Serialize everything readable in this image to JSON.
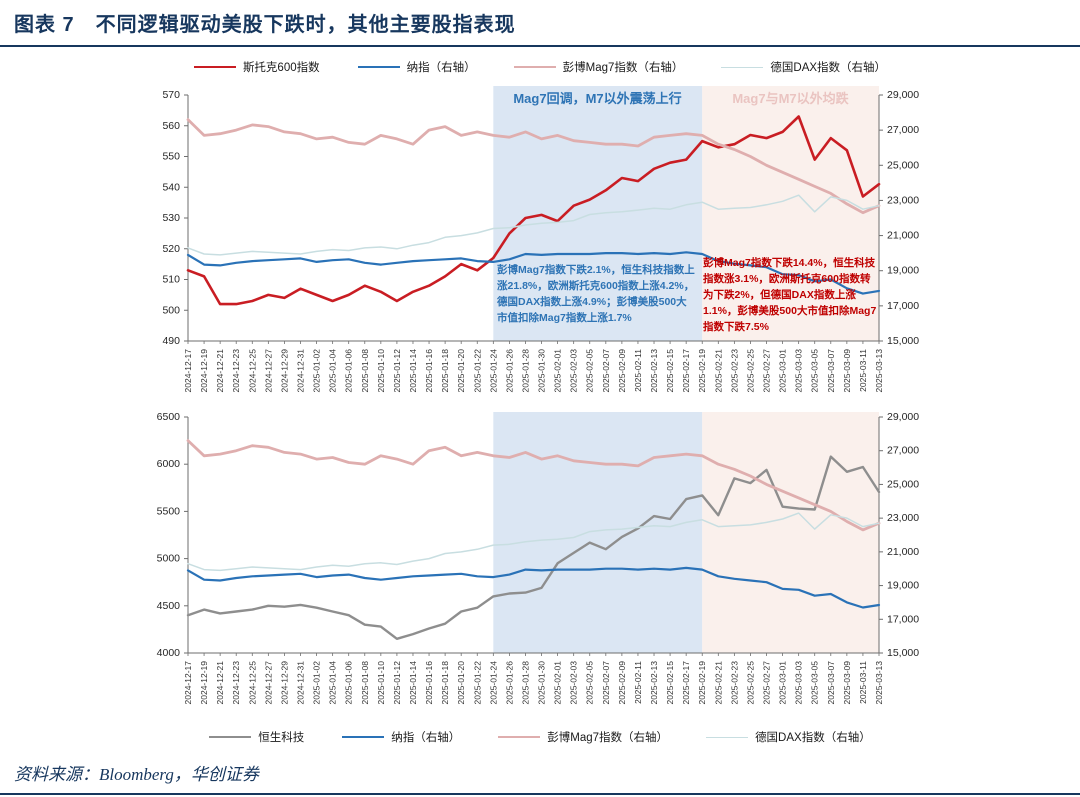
{
  "figure": {
    "title": "图表 7　不同逻辑驱动美股下跌时，其他主要股指表现",
    "source": "资料来源：Bloomberg，华创证券"
  },
  "annotations": {
    "blue_period": "彭博Mag7指数下跌2.1%，恒生科技指数上涨21.8%，欧洲斯托克600指数上涨4.2%，德国DAX指数上涨4.9%；彭博美股500大市值扣除Mag7指数上涨1.7%",
    "red_period": "彭博Mag7指数下跌14.4%，恒生科技指数涨3.1%，欧洲斯托克600指数转为下跌2%，但德国DAX指数上涨1.1%，彭博美股500大市值扣除Mag7指数下跌7.5%"
  },
  "colors": {
    "accent_navy": "#17375e",
    "blue_shade": "#dbe6f3",
    "pink_shade": "#faf0ec",
    "annotation_blue": "#2e74b5",
    "annotation_red": "#bf0000",
    "region_label_pink": "#eac4c1",
    "axis_line": "#6e6e6e"
  },
  "chart_data": [
    {
      "type": "line",
      "legend_position": "top",
      "x": [
        "2024-12-17",
        "2024-12-19",
        "2024-12-21",
        "2024-12-23",
        "2024-12-25",
        "2024-12-27",
        "2024-12-29",
        "2024-12-31",
        "2025-01-02",
        "2025-01-04",
        "2025-01-06",
        "2025-01-08",
        "2025-01-10",
        "2025-01-12",
        "2025-01-14",
        "2025-01-16",
        "2025-01-18",
        "2025-01-20",
        "2025-01-22",
        "2025-01-24",
        "2025-01-26",
        "2025-01-28",
        "2025-01-30",
        "2025-02-01",
        "2025-02-03",
        "2025-02-05",
        "2025-02-07",
        "2025-02-09",
        "2025-02-11",
        "2025-02-13",
        "2025-02-15",
        "2025-02-17",
        "2025-02-19",
        "2025-02-21",
        "2025-02-23",
        "2025-02-25",
        "2025-02-27",
        "2025-03-01",
        "2025-03-03",
        "2025-03-05",
        "2025-03-07",
        "2025-03-09",
        "2025-03-11",
        "2025-03-13"
      ],
      "left_axis": {
        "min": 490,
        "max": 570,
        "step": 10
      },
      "right_axis": {
        "min": 15000,
        "max": 29000,
        "step": 2000
      },
      "regions": [
        {
          "label": "Mag7回调，M7以外震荡上行",
          "from": "2025-01-24",
          "to": "2025-02-19",
          "fill": "#dbe6f3"
        },
        {
          "label": "Mag7与M7以外均跌",
          "from": "2025-02-19",
          "to": "2025-03-13",
          "fill": "#faf0ec"
        }
      ],
      "series": [
        {
          "name": "斯托克600指数",
          "axis": "left",
          "color": "#c91d23",
          "width": 2.6,
          "values": [
            513,
            511,
            502,
            502,
            503,
            505,
            504,
            507,
            505,
            503,
            505,
            508,
            506,
            503,
            506,
            508,
            511,
            515,
            513,
            517,
            525,
            530,
            531,
            529,
            534,
            536,
            539,
            543,
            542,
            546,
            548,
            549,
            555,
            553,
            554,
            557,
            556,
            558,
            563,
            549,
            556,
            552,
            537,
            541
          ]
        },
        {
          "name": "纳指（右轴）",
          "axis": "right",
          "color": "#2a72b7",
          "width": 2.2,
          "values": [
            19900,
            19350,
            19300,
            19450,
            19550,
            19600,
            19650,
            19700,
            19500,
            19600,
            19650,
            19450,
            19350,
            19450,
            19550,
            19600,
            19650,
            19700,
            19550,
            19500,
            19650,
            19950,
            19900,
            19950,
            19950,
            19950,
            20000,
            20000,
            19950,
            20000,
            19950,
            20050,
            19950,
            19550,
            19400,
            19300,
            19200,
            18800,
            18750,
            18400,
            18500,
            18000,
            17700,
            17850
          ]
        },
        {
          "name": "彭博Mag7指数（右轴）",
          "axis": "right",
          "color": "#dfaeae",
          "width": 2.8,
          "values": [
            27600,
            26700,
            26800,
            27000,
            27300,
            27200,
            26900,
            26800,
            26500,
            26600,
            26300,
            26200,
            26700,
            26500,
            26200,
            27000,
            27200,
            26700,
            26900,
            26700,
            26600,
            26900,
            26500,
            26700,
            26400,
            26300,
            26200,
            26200,
            26100,
            26600,
            26700,
            26800,
            26700,
            26200,
            25900,
            25500,
            25000,
            24600,
            24200,
            23800,
            23400,
            22800,
            22300,
            22700
          ]
        },
        {
          "name": "德国DAX指数（右轴）",
          "axis": "right",
          "color": "#c8dee1",
          "width": 1.5,
          "values": [
            20300,
            19950,
            19900,
            20000,
            20100,
            20050,
            20000,
            19950,
            20100,
            20200,
            20150,
            20300,
            20350,
            20250,
            20450,
            20600,
            20900,
            21000,
            21150,
            21400,
            21450,
            21600,
            21700,
            21750,
            21850,
            22200,
            22300,
            22350,
            22450,
            22550,
            22500,
            22750,
            22900,
            22500,
            22550,
            22600,
            22750,
            22950,
            23300,
            22350,
            23200,
            23000,
            22500,
            22700
          ]
        }
      ]
    },
    {
      "type": "line",
      "legend_position": "bottom",
      "x": [
        "2024-12-17",
        "2024-12-19",
        "2024-12-21",
        "2024-12-23",
        "2024-12-25",
        "2024-12-27",
        "2024-12-29",
        "2024-12-31",
        "2025-01-02",
        "2025-01-04",
        "2025-01-06",
        "2025-01-08",
        "2025-01-10",
        "2025-01-12",
        "2025-01-14",
        "2025-01-16",
        "2025-01-18",
        "2025-01-20",
        "2025-01-22",
        "2025-01-24",
        "2025-01-26",
        "2025-01-28",
        "2025-01-30",
        "2025-02-01",
        "2025-02-03",
        "2025-02-05",
        "2025-02-07",
        "2025-02-09",
        "2025-02-11",
        "2025-02-13",
        "2025-02-15",
        "2025-02-17",
        "2025-02-19",
        "2025-02-21",
        "2025-02-23",
        "2025-02-25",
        "2025-02-27",
        "2025-03-01",
        "2025-03-03",
        "2025-03-05",
        "2025-03-07",
        "2025-03-09",
        "2025-03-11",
        "2025-03-13"
      ],
      "left_axis": {
        "min": 4000,
        "max": 6500,
        "step": 500
      },
      "right_axis": {
        "min": 15000,
        "max": 29000,
        "step": 2000
      },
      "regions": [
        {
          "label": "",
          "from": "2025-01-24",
          "to": "2025-02-19",
          "fill": "#dbe6f3"
        },
        {
          "label": "",
          "from": "2025-02-19",
          "to": "2025-03-13",
          "fill": "#faf0ec"
        }
      ],
      "series": [
        {
          "name": "恒生科技",
          "axis": "left",
          "color": "#8e8e8e",
          "width": 2.4,
          "values": [
            4400,
            4460,
            4420,
            4440,
            4460,
            4500,
            4490,
            4510,
            4480,
            4440,
            4400,
            4300,
            4280,
            4150,
            4200,
            4260,
            4310,
            4440,
            4480,
            4600,
            4630,
            4640,
            4690,
            4950,
            5060,
            5170,
            5100,
            5230,
            5320,
            5450,
            5420,
            5630,
            5670,
            5460,
            5850,
            5800,
            5940,
            5550,
            5530,
            5520,
            6080,
            5920,
            5970,
            5705
          ]
        },
        {
          "name": "纳指（右轴）",
          "axis": "right",
          "color": "#2a72b7",
          "width": 2.2,
          "values": [
            19900,
            19350,
            19300,
            19450,
            19550,
            19600,
            19650,
            19700,
            19500,
            19600,
            19650,
            19450,
            19350,
            19450,
            19550,
            19600,
            19650,
            19700,
            19550,
            19500,
            19650,
            19950,
            19900,
            19950,
            19950,
            19950,
            20000,
            20000,
            19950,
            20000,
            19950,
            20050,
            19950,
            19550,
            19400,
            19300,
            19200,
            18800,
            18750,
            18400,
            18500,
            18000,
            17700,
            17850
          ]
        },
        {
          "name": "彭博Mag7指数（右轴）",
          "axis": "right",
          "color": "#dfaeae",
          "width": 2.8,
          "values": [
            27600,
            26700,
            26800,
            27000,
            27300,
            27200,
            26900,
            26800,
            26500,
            26600,
            26300,
            26200,
            26700,
            26500,
            26200,
            27000,
            27200,
            26700,
            26900,
            26700,
            26600,
            26900,
            26500,
            26700,
            26400,
            26300,
            26200,
            26200,
            26100,
            26600,
            26700,
            26800,
            26700,
            26200,
            25900,
            25500,
            25000,
            24600,
            24200,
            23800,
            23400,
            22800,
            22300,
            22700
          ]
        },
        {
          "name": "德国DAX指数（右轴）",
          "axis": "right",
          "color": "#c8dee1",
          "width": 1.5,
          "values": [
            20300,
            19950,
            19900,
            20000,
            20100,
            20050,
            20000,
            19950,
            20100,
            20200,
            20150,
            20300,
            20350,
            20250,
            20450,
            20600,
            20900,
            21000,
            21150,
            21400,
            21450,
            21600,
            21700,
            21750,
            21850,
            22200,
            22300,
            22350,
            22450,
            22550,
            22500,
            22750,
            22900,
            22500,
            22550,
            22600,
            22750,
            22950,
            23300,
            22350,
            23200,
            23000,
            22500,
            22700
          ]
        }
      ]
    }
  ]
}
